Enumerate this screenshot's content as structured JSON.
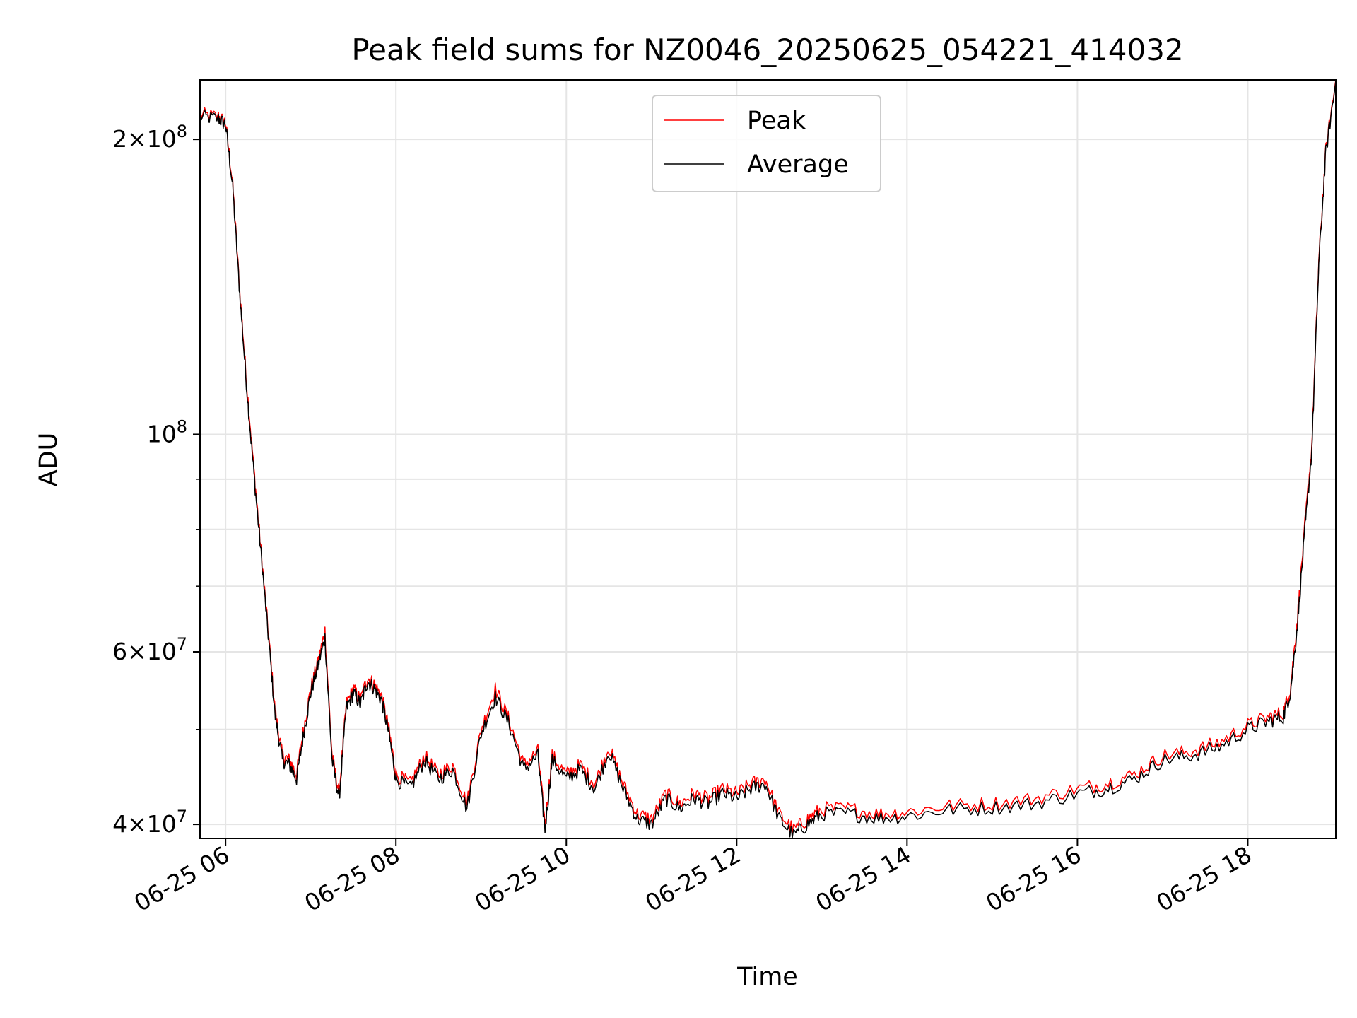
{
  "chart_data": {
    "type": "line",
    "title": "Peak field sums for NZ0046_20250625_054221_414032",
    "xlabel": "Time",
    "ylabel": "ADU",
    "y_scale": "log",
    "ylim": [
      38700000,
      230000000
    ],
    "xlim": [
      "06-25 05:42",
      "06-25 19:02"
    ],
    "grid": true,
    "legend_position": "top-center",
    "x_ticks": [
      "06-25 06",
      "06-25 08",
      "06-25 10",
      "06-25 12",
      "06-25 14",
      "06-25 16",
      "06-25 18"
    ],
    "y_ticks": [
      {
        "value": 40000000,
        "base": "4",
        "exp": "7"
      },
      {
        "value": 60000000,
        "base": "6",
        "exp": "7"
      },
      {
        "value": 100000000,
        "base": "",
        "exp": "8"
      },
      {
        "value": 200000000,
        "base": "2",
        "exp": "8"
      }
    ],
    "y_minor_ticks": [
      50000000,
      70000000,
      80000000,
      90000000
    ],
    "x_times": [
      "05:42",
      "05:55",
      "06:00",
      "06:05",
      "06:10",
      "06:15",
      "06:20",
      "06:25",
      "06:30",
      "06:35",
      "06:40",
      "06:45",
      "06:50",
      "06:55",
      "07:00",
      "07:05",
      "07:10",
      "07:15",
      "07:20",
      "07:25",
      "07:30",
      "07:35",
      "07:40",
      "07:45",
      "07:50",
      "07:55",
      "08:00",
      "08:10",
      "08:20",
      "08:30",
      "08:40",
      "08:50",
      "09:00",
      "09:10",
      "09:20",
      "09:30",
      "09:40",
      "09:45",
      "09:50",
      "10:00",
      "10:10",
      "10:20",
      "10:30",
      "10:40",
      "10:50",
      "11:00",
      "11:10",
      "11:20",
      "11:30",
      "11:40",
      "11:50",
      "12:00",
      "12:10",
      "12:20",
      "12:30",
      "12:40",
      "12:50",
      "13:00",
      "13:20",
      "13:40",
      "14:00",
      "14:30",
      "15:00",
      "15:30",
      "16:00",
      "16:20",
      "16:40",
      "17:00",
      "17:20",
      "17:40",
      "18:00",
      "18:15",
      "18:25",
      "18:30",
      "18:35",
      "18:40",
      "18:45",
      "18:50",
      "18:55",
      "19:02"
    ],
    "series": [
      {
        "name": "Peak",
        "color": "#ff0000",
        "values": [
          212000000,
          211000000,
          208000000,
          180000000,
          140000000,
          112000000,
          92000000,
          76000000,
          63000000,
          52000000,
          47000000,
          46500000,
          45000000,
          50000000,
          55000000,
          58500000,
          63000000,
          47000000,
          43000000,
          53000000,
          55000000,
          53500000,
          56500000,
          55500000,
          54000000,
          50000000,
          45000000,
          44000000,
          47000000,
          45000000,
          46000000,
          42000000,
          50000000,
          55000000,
          51000000,
          46000000,
          47500000,
          40000000,
          47000000,
          45000000,
          46000000,
          44000000,
          48000000,
          44000000,
          41000000,
          40500000,
          43000000,
          42000000,
          43000000,
          42500000,
          43500000,
          43000000,
          44000000,
          44500000,
          41000000,
          39500000,
          40500000,
          41500000,
          41500000,
          41000000,
          41200000,
          41800000,
          42000000,
          42500000,
          43500000,
          44000000,
          45000000,
          47000000,
          47500000,
          48500000,
          50500000,
          51500000,
          52000000,
          55000000,
          65000000,
          80000000,
          97000000,
          150000000,
          195000000,
          230000000
        ]
      },
      {
        "name": "Average",
        "color": "#000000",
        "values": [
          211000000,
          210000000,
          207000000,
          179000000,
          139000000,
          111000000,
          91000000,
          75500000,
          62500000,
          51500000,
          46500000,
          46000000,
          44500000,
          49500000,
          54500000,
          58000000,
          62000000,
          46500000,
          42500000,
          52500000,
          54500000,
          53000000,
          56000000,
          55000000,
          53500000,
          49500000,
          44500000,
          43500000,
          46500000,
          44500000,
          45500000,
          41500000,
          49500000,
          54000000,
          50500000,
          45500000,
          47000000,
          39500000,
          46500000,
          44500000,
          45500000,
          43500000,
          47500000,
          43500000,
          40500000,
          40000000,
          42500000,
          41500000,
          42500000,
          42000000,
          43000000,
          42500000,
          43500000,
          44000000,
          40500000,
          39000000,
          40000000,
          41000000,
          41000000,
          40600000,
          40800000,
          41400000,
          41600000,
          42000000,
          43000000,
          43500000,
          44500000,
          46500000,
          47000000,
          48000000,
          50000000,
          51000000,
          51500000,
          54500000,
          64000000,
          79000000,
          96000000,
          149000000,
          194000000,
          229000000
        ]
      }
    ]
  }
}
